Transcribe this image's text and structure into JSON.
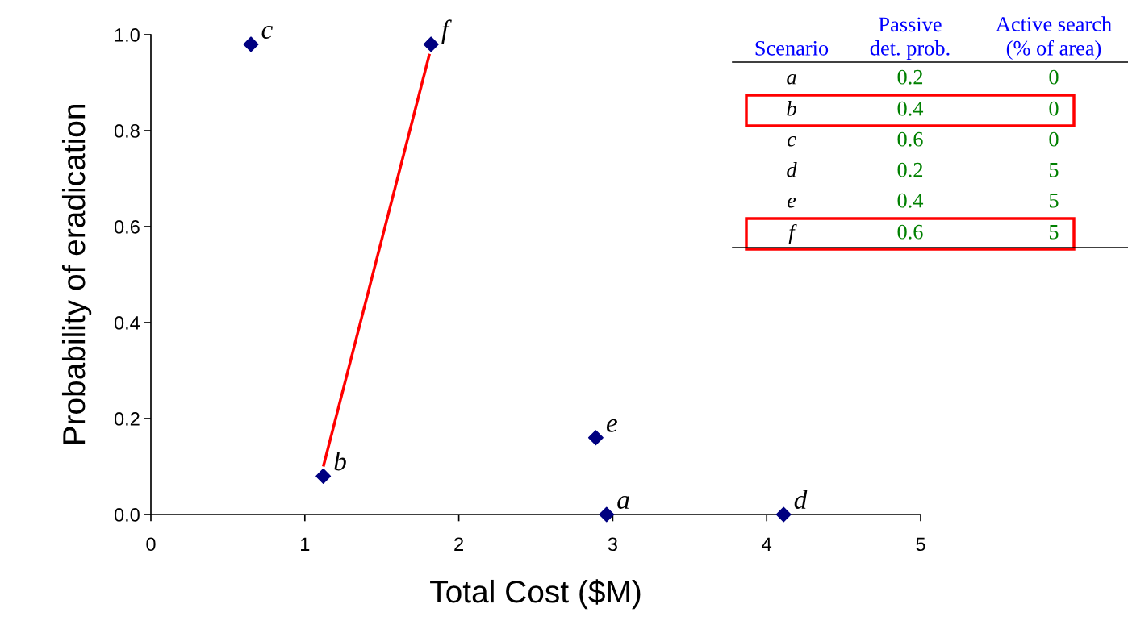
{
  "chart_data": {
    "type": "scatter",
    "xlabel": "Total Cost ($M)",
    "ylabel": "Probability of eradication",
    "xlim": [
      0,
      5
    ],
    "ylim": [
      0,
      1.0
    ],
    "xticks": [
      0,
      1,
      2,
      3,
      4,
      5
    ],
    "yticks": [
      {
        "value": 0,
        "label": "0.0"
      },
      {
        "value": 0.2,
        "label": "0.2"
      },
      {
        "value": 0.4,
        "label": "0.4"
      },
      {
        "value": 0.6,
        "label": "0.6"
      },
      {
        "value": 0.8,
        "label": "0.8"
      },
      {
        "value": 1.0,
        "label": "1.0"
      }
    ],
    "grid": false,
    "legend": false,
    "marker": "diamond",
    "series": [
      {
        "color": "#000080",
        "x": [
          2.96,
          1.12,
          0.65,
          4.11,
          2.89,
          1.82
        ],
        "values": [
          0,
          0.08,
          0.98,
          0,
          0.16,
          0.98
        ]
      },
      {
        "type": "line",
        "marker": "none",
        "color": "#ff0000",
        "x": [
          1.12,
          1.81
        ],
        "values": [
          0.1,
          0.96
        ]
      }
    ],
    "annotations": [
      {
        "text": "a",
        "x": 2.96,
        "y": 0
      },
      {
        "text": "b",
        "x": 1.12,
        "y": 0.08
      },
      {
        "text": "c",
        "x": 0.65,
        "y": 0.98
      },
      {
        "text": "d",
        "x": 4.11,
        "y": 0
      },
      {
        "text": "e",
        "x": 2.89,
        "y": 0.16
      },
      {
        "text": "f",
        "x": 1.82,
        "y": 0.98
      },
      "Scenario",
      "Passive\ndet. prob.",
      "Active search\n(% of area)",
      "a",
      "0.2",
      "0",
      "b",
      "0.4",
      "0",
      "c",
      "0.6",
      "0",
      "d",
      "0.2",
      "5",
      "e",
      "0.4",
      "5",
      "f",
      "0.6",
      "5"
    ]
  }
}
